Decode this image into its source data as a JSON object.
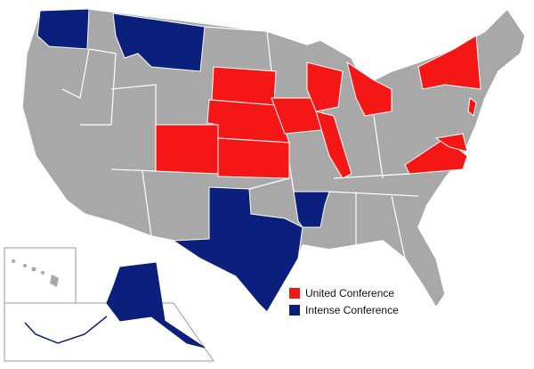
{
  "colors": {
    "united": "#f51616",
    "intense": "#0b1f7c",
    "other": "#a8a8a8",
    "border": "#ffffff"
  },
  "legend": [
    {
      "label": "United Conference",
      "color": "#f51616"
    },
    {
      "label": "Intense Conference",
      "color": "#0b1f7c"
    }
  ],
  "states": {
    "united": [
      "South Dakota",
      "Nebraska",
      "Kansas",
      "Colorado",
      "Iowa",
      "Illinois",
      "Wisconsin",
      "Michigan",
      "New York",
      "Virginia",
      "Maryland",
      "New Jersey"
    ],
    "intense": [
      "Washington",
      "Montana",
      "Texas",
      "Arkansas",
      "Alaska"
    ]
  }
}
